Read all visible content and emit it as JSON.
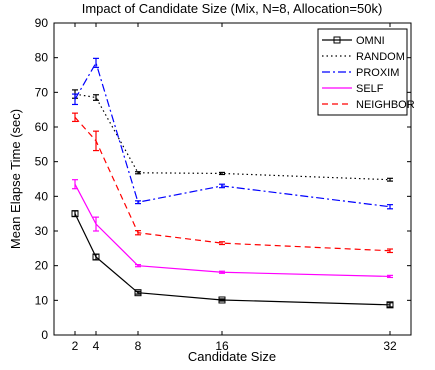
{
  "chart_data": {
    "type": "line",
    "title": "Impact of Candidate Size (Mix, N=8, Allocation=50k)",
    "xlabel": "Candidate Size",
    "ylabel": "Mean Elapse Time (sec)",
    "x": [
      2,
      4,
      8,
      16,
      32
    ],
    "xlim": [
      0,
      34
    ],
    "ylim": [
      0,
      90
    ],
    "xticks": [
      2,
      4,
      8,
      16,
      32
    ],
    "yticks": [
      0,
      10,
      20,
      30,
      40,
      50,
      60,
      70,
      80,
      90
    ],
    "legend_position": "top-right",
    "grid": false,
    "series": [
      {
        "name": "OMNI",
        "values": [
          35.0,
          22.5,
          12.2,
          10.1,
          8.7
        ],
        "error": [
          0.8,
          0.8,
          0.4,
          0.3,
          0.6
        ],
        "color": "#000000",
        "style": "solid",
        "marker": "square"
      },
      {
        "name": "RANDOM",
        "values": [
          69.5,
          68.5,
          46.8,
          46.6,
          44.8
        ],
        "error": [
          1.2,
          0.8,
          0.3,
          0.3,
          0.4
        ],
        "color": "#000000",
        "style": "dotted",
        "marker": "none"
      },
      {
        "name": "PROXIM",
        "values": [
          68.0,
          78.5,
          38.3,
          43.0,
          37.0
        ],
        "error": [
          1.5,
          1.3,
          0.4,
          0.5,
          0.6
        ],
        "color": "#0000ff",
        "style": "dashdot",
        "marker": "none"
      },
      {
        "name": "SELF",
        "values": [
          43.5,
          32.0,
          20.0,
          18.1,
          16.9
        ],
        "error": [
          1.3,
          2.0,
          0.3,
          0.3,
          0.3
        ],
        "color": "#ff00ff",
        "style": "solid",
        "marker": "none"
      },
      {
        "name": "NEIGHBOR",
        "values": [
          62.8,
          56.0,
          29.5,
          26.5,
          24.3
        ],
        "error": [
          1.2,
          2.8,
          0.6,
          0.4,
          0.5
        ],
        "color": "#ff0000",
        "style": "dashed",
        "marker": "none"
      }
    ]
  }
}
